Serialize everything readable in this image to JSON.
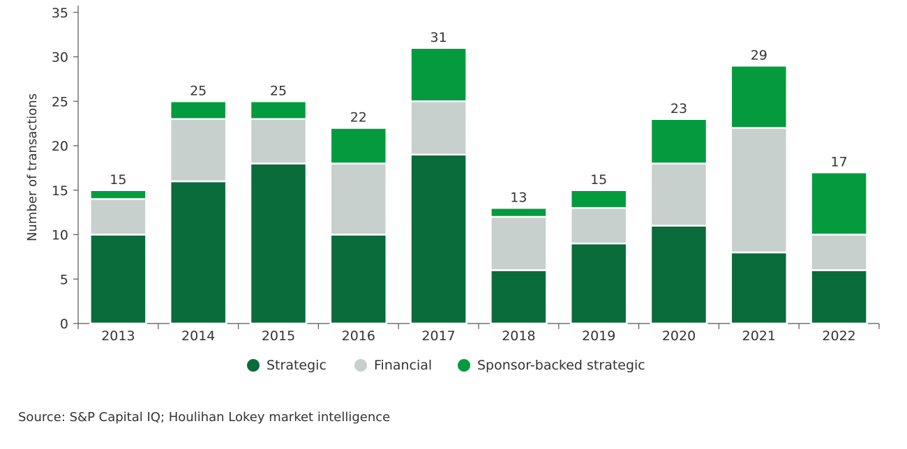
{
  "chart_data": {
    "type": "bar",
    "stacked": true,
    "categories": [
      "2013",
      "2014",
      "2015",
      "2016",
      "2017",
      "2018",
      "2019",
      "2020",
      "2021",
      "2022"
    ],
    "series": [
      {
        "name": "Strategic",
        "color": "#0a6b3b",
        "values": [
          10,
          16,
          18,
          10,
          19,
          6,
          9,
          11,
          8,
          6
        ]
      },
      {
        "name": "Financial",
        "color": "#c8d0cd",
        "values": [
          4,
          7,
          5,
          8,
          6,
          6,
          4,
          7,
          14,
          4
        ]
      },
      {
        "name": "Sponsor-backed strategic",
        "color": "#039b3e",
        "values": [
          1,
          2,
          2,
          4,
          6,
          1,
          2,
          5,
          7,
          7
        ]
      }
    ],
    "totals": [
      "15",
      "25",
      "25",
      "22",
      "31",
      "13",
      "15",
      "23",
      "29",
      "17"
    ],
    "ylabel": "Number of transactions",
    "yticks": [
      "0",
      "5",
      "10",
      "15",
      "20",
      "25",
      "30",
      "35"
    ],
    "ylim": [
      0,
      35
    ],
    "legend_position": "bottom"
  },
  "source": "Source: S&P Capital IQ; Houlihan Lokey market intelligence"
}
